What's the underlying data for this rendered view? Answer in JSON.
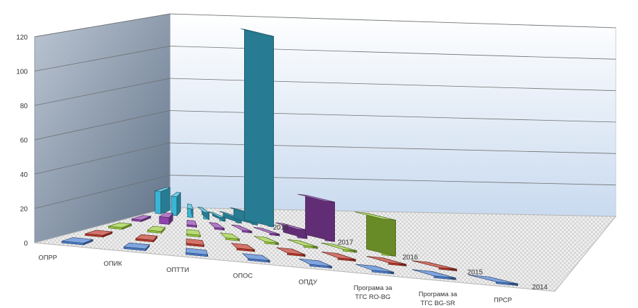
{
  "chart_data": {
    "type": "bar",
    "subtype": "3d-column",
    "title": "",
    "xlabel": "",
    "ylabel": "",
    "ylim": [
      0,
      120
    ],
    "yticks": [
      "0",
      "20",
      "40",
      "60",
      "80",
      "100",
      "120"
    ],
    "grid": true,
    "categories": [
      [
        "ОПРР"
      ],
      [
        "ОПИК"
      ],
      [
        "ОПТТИ"
      ],
      [
        "ОПОС"
      ],
      [
        "ОПДУ"
      ],
      [
        "Програма за",
        "ТГС RO-BG"
      ],
      [
        "Програма за",
        "ТГС BG-SR"
      ],
      [
        "ПРСР"
      ]
    ],
    "series": [
      {
        "name": "2014",
        "color": "#4a7fd1",
        "values": [
          0,
          0,
          0,
          0,
          0,
          0,
          0,
          0
        ]
      },
      {
        "name": "2015",
        "color": "#c0392b",
        "values": [
          0,
          0,
          0,
          0,
          0,
          0,
          0,
          0
        ]
      },
      {
        "name": "2016",
        "color": "#9acd3a",
        "values": [
          0,
          0,
          0,
          0,
          0,
          0,
          0,
          20
        ]
      },
      {
        "name": "2017",
        "color": "#8e44ad",
        "values": [
          0,
          3,
          0,
          0,
          0,
          0,
          4,
          22
        ]
      },
      {
        "name": "2018",
        "color": "#3ab5d6",
        "values": [
          12,
          10,
          4,
          3,
          1,
          2,
          5,
          110
        ]
      }
    ]
  }
}
